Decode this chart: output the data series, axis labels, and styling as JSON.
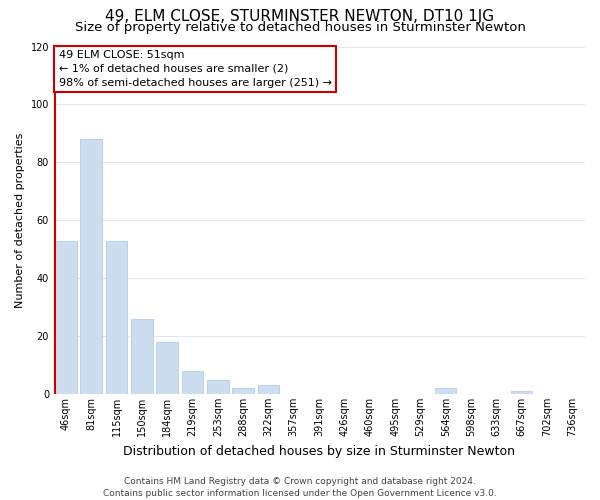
{
  "title": "49, ELM CLOSE, STURMINSTER NEWTON, DT10 1JG",
  "subtitle": "Size of property relative to detached houses in Sturminster Newton",
  "xlabel": "Distribution of detached houses by size in Sturminster Newton",
  "ylabel": "Number of detached properties",
  "bar_values": [
    53,
    88,
    53,
    26,
    18,
    8,
    5,
    2,
    3,
    0,
    0,
    0,
    0,
    0,
    0,
    2,
    0,
    0,
    1,
    0,
    0
  ],
  "bar_labels": [
    "46sqm",
    "81sqm",
    "115sqm",
    "150sqm",
    "184sqm",
    "219sqm",
    "253sqm",
    "288sqm",
    "322sqm",
    "357sqm",
    "391sqm",
    "426sqm",
    "460sqm",
    "495sqm",
    "529sqm",
    "564sqm",
    "598sqm",
    "633sqm",
    "667sqm",
    "702sqm",
    "736sqm"
  ],
  "bar_color": "#cdddf0",
  "bar_edge_color": "#aec6e8",
  "annotation_title": "49 ELM CLOSE: 51sqm",
  "annotation_line1": "← 1% of detached houses are smaller (2)",
  "annotation_line2": "98% of semi-detached houses are larger (251) →",
  "annotation_box_color": "#ffffff",
  "annotation_box_edge_color": "#cc0000",
  "ylim": [
    0,
    120
  ],
  "yticks": [
    0,
    20,
    40,
    60,
    80,
    100,
    120
  ],
  "footer_line1": "Contains HM Land Registry data © Crown copyright and database right 2024.",
  "footer_line2": "Contains public sector information licensed under the Open Government Licence v3.0.",
  "background_color": "#ffffff",
  "grid_color": "#dce8f5",
  "title_fontsize": 11,
  "subtitle_fontsize": 9.5,
  "xlabel_fontsize": 9,
  "ylabel_fontsize": 8,
  "tick_fontsize": 7,
  "annotation_fontsize": 8,
  "footer_fontsize": 6.5
}
